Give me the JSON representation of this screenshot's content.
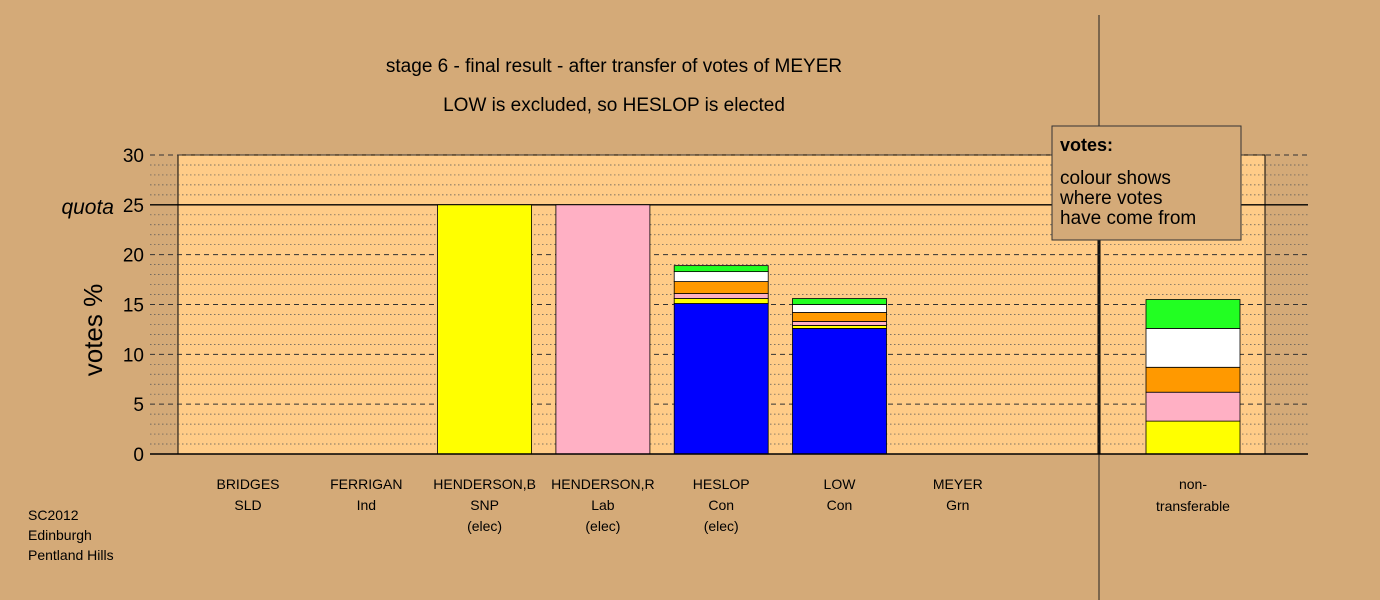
{
  "chart_data": {
    "type": "bar",
    "stacked": true,
    "title": "stage 6 - final result - after transfer of votes of MEYER",
    "subtitle": "LOW is excluded, so HESLOP is elected",
    "ylabel": "votes %",
    "ylim": [
      0,
      30
    ],
    "yticks": [
      "0",
      "5",
      "10",
      "15",
      "20",
      "25",
      "30"
    ],
    "quota": {
      "label": "quota",
      "value": 25
    },
    "grid": true,
    "legend": {
      "title": "votes:",
      "lines": [
        "colour shows",
        "where votes",
        "have come from"
      ]
    },
    "footer": [
      "SC2012",
      "Edinburgh",
      "Pentland Hills"
    ],
    "candidates": [
      {
        "name": "BRIDGES",
        "party": "SLD",
        "status": "",
        "segments": []
      },
      {
        "name": "FERRIGAN",
        "party": "Ind",
        "status": "",
        "segments": []
      },
      {
        "name": "HENDERSON,B",
        "party": "SNP",
        "status": "(elec)",
        "segments": [
          {
            "color": "#ffff00",
            "value": 25
          }
        ]
      },
      {
        "name": "HENDERSON,R",
        "party": "Lab",
        "status": "(elec)",
        "segments": [
          {
            "color": "#ffb0c4",
            "value": 25
          }
        ]
      },
      {
        "name": "HESLOP",
        "party": "Con",
        "status": "(elec)",
        "segments": [
          {
            "color": "#0000ff",
            "value": 15.1
          },
          {
            "color": "#ffff00",
            "value": 0.5
          },
          {
            "color": "#ffb0c4",
            "value": 0.5
          },
          {
            "color": "#ff9900",
            "value": 1.2
          },
          {
            "color": "#ffffff",
            "value": 1.0
          },
          {
            "color": "#22ff22",
            "value": 0.6
          }
        ]
      },
      {
        "name": "LOW",
        "party": "Con",
        "status": "",
        "segments": [
          {
            "color": "#0000ff",
            "value": 12.6
          },
          {
            "color": "#ffff00",
            "value": 0.3
          },
          {
            "color": "#ffb0c4",
            "value": 0.4
          },
          {
            "color": "#ff9900",
            "value": 0.9
          },
          {
            "color": "#ffffff",
            "value": 0.8
          },
          {
            "color": "#22ff22",
            "value": 0.6
          }
        ]
      },
      {
        "name": "MEYER",
        "party": "Grn",
        "status": "",
        "segments": []
      }
    ],
    "nontransferable": {
      "label_line1": "non-",
      "label_line2": "transferable",
      "segments": [
        {
          "color": "#ffff00",
          "value": 3.3
        },
        {
          "color": "#ffb0c4",
          "value": 2.9
        },
        {
          "color": "#ff9900",
          "value": 2.5
        },
        {
          "color": "#ffffff",
          "value": 3.9
        },
        {
          "color": "#22ff22",
          "value": 2.9
        }
      ]
    }
  }
}
